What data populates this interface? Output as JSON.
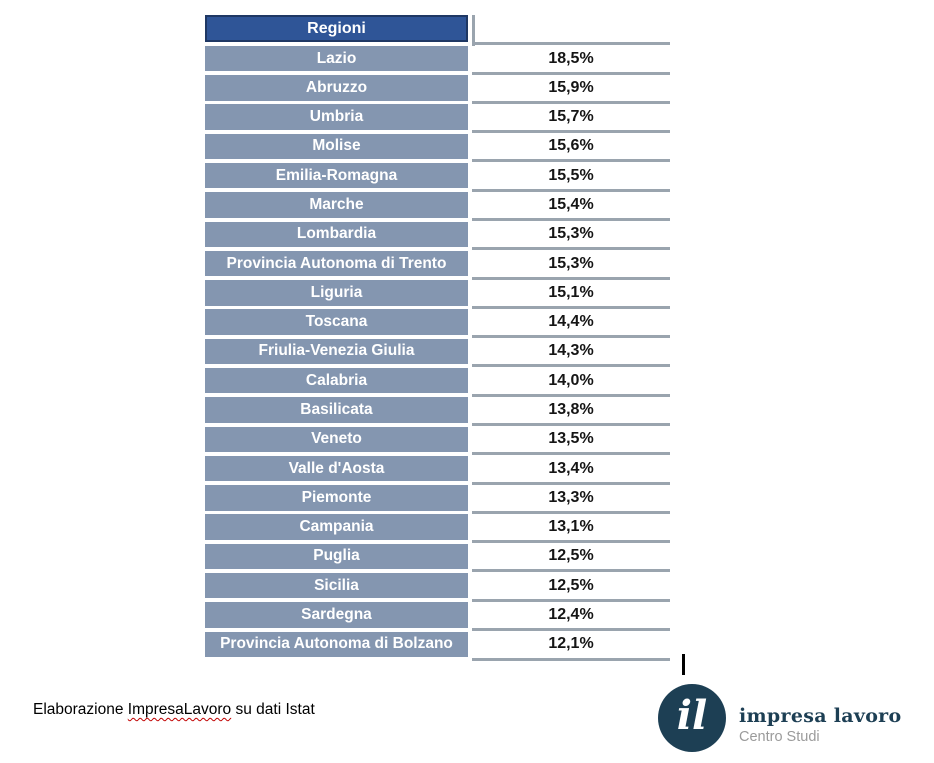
{
  "table": {
    "header": "Regioni",
    "rows": [
      {
        "region": "Lazio",
        "value": "18,5%"
      },
      {
        "region": "Abruzzo",
        "value": "15,9%"
      },
      {
        "region": "Umbria",
        "value": "15,7%"
      },
      {
        "region": "Molise",
        "value": "15,6%"
      },
      {
        "region": "Emilia-Romagna",
        "value": "15,5%"
      },
      {
        "region": "Marche",
        "value": "15,4%"
      },
      {
        "region": "Lombardia",
        "value": "15,3%"
      },
      {
        "region": "Provincia Autonoma di Trento",
        "value": "15,3%"
      },
      {
        "region": "Liguria",
        "value": "15,1%"
      },
      {
        "region": "Toscana",
        "value": "14,4%"
      },
      {
        "region": "Friulia-Venezia Giulia",
        "value": "14,3%"
      },
      {
        "region": "Calabria",
        "value": "14,0%"
      },
      {
        "region": "Basilicata",
        "value": "13,8%"
      },
      {
        "region": "Veneto",
        "value": "13,5%"
      },
      {
        "region": "Valle d'Aosta",
        "value": "13,4%"
      },
      {
        "region": "Piemonte",
        "value": "13,3%"
      },
      {
        "region": "Campania",
        "value": "13,1%"
      },
      {
        "region": "Puglia",
        "value": "12,5%"
      },
      {
        "region": "Sicilia",
        "value": "12,5%"
      },
      {
        "region": "Sardegna",
        "value": "12,4%"
      },
      {
        "region": "Provincia Autonoma di Bolzano",
        "value": "12,1%"
      }
    ]
  },
  "chart_data": {
    "type": "table",
    "title": "",
    "columns": [
      "Regioni",
      "%"
    ],
    "categories": [
      "Lazio",
      "Abruzzo",
      "Umbria",
      "Molise",
      "Emilia-Romagna",
      "Marche",
      "Lombardia",
      "Provincia Autonoma di Trento",
      "Liguria",
      "Toscana",
      "Friulia-Venezia Giulia",
      "Calabria",
      "Basilicata",
      "Veneto",
      "Valle d'Aosta",
      "Piemonte",
      "Campania",
      "Puglia",
      "Sicilia",
      "Sardegna",
      "Provincia Autonoma di Bolzano"
    ],
    "values": [
      18.5,
      15.9,
      15.7,
      15.6,
      15.5,
      15.4,
      15.3,
      15.3,
      15.1,
      14.4,
      14.3,
      14.0,
      13.8,
      13.5,
      13.4,
      13.3,
      13.1,
      12.5,
      12.5,
      12.4,
      12.1
    ]
  },
  "footer": {
    "attribution_prefix": "Elaborazione ",
    "attribution_brand": "ImpresaLavoro",
    "attribution_suffix": " su dati Istat"
  },
  "logo": {
    "monogram": "il",
    "name": "impresa lavoro",
    "subtitle": "Centro Studi"
  },
  "colors": {
    "header_bg": "#2F5597",
    "header_border": "#1F3864",
    "row_bg": "#8496B0",
    "separator_line": "#9aa4ae",
    "value_text": "#151515",
    "logo_navy": "#1d3f54",
    "subtitle_gray": "#9b9b9b",
    "spellcheck_red": "#c00000"
  }
}
